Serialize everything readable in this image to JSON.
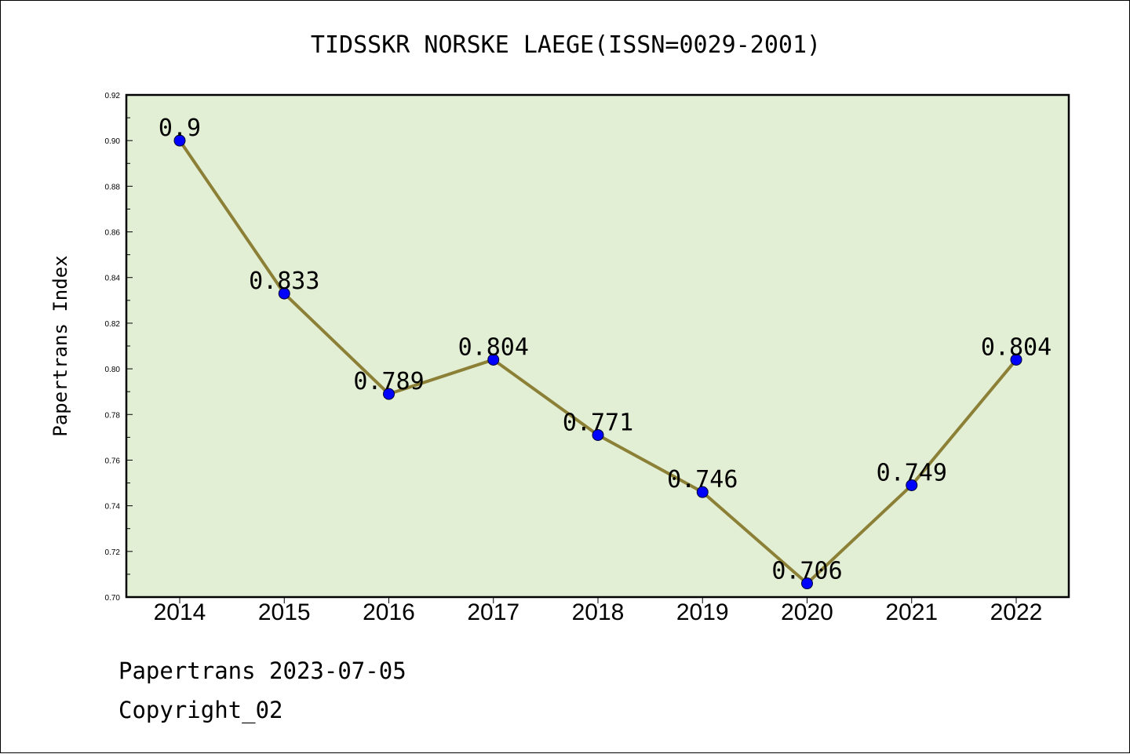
{
  "chart_data": {
    "type": "line",
    "title": "TIDSSKR NORSKE LAEGE(ISSN=0029-2001)",
    "ylabel": "Papertrans Index",
    "xlabel": "",
    "categories": [
      "2014",
      "2015",
      "2016",
      "2017",
      "2018",
      "2019",
      "2020",
      "2021",
      "2022"
    ],
    "values": [
      0.9,
      0.833,
      0.789,
      0.804,
      0.771,
      0.746,
      0.706,
      0.749,
      0.804
    ],
    "data_labels": [
      "0.9",
      "0.833",
      "0.789",
      "0.804",
      "0.771",
      "0.746",
      "0.706",
      "0.749",
      "0.804"
    ],
    "ylim": [
      0.7,
      0.92
    ],
    "yticks": [
      "0.70",
      "0.72",
      "0.74",
      "0.76",
      "0.78",
      "0.80",
      "0.82",
      "0.84",
      "0.86",
      "0.88",
      "0.90",
      "0.92"
    ],
    "grid": false,
    "colors": {
      "plot_background": "#e2efd5",
      "line": "#8b8036",
      "marker": "#0000ff"
    }
  },
  "footer": {
    "line1": "Papertrans 2023-07-05",
    "line2": "Copyright_02"
  }
}
